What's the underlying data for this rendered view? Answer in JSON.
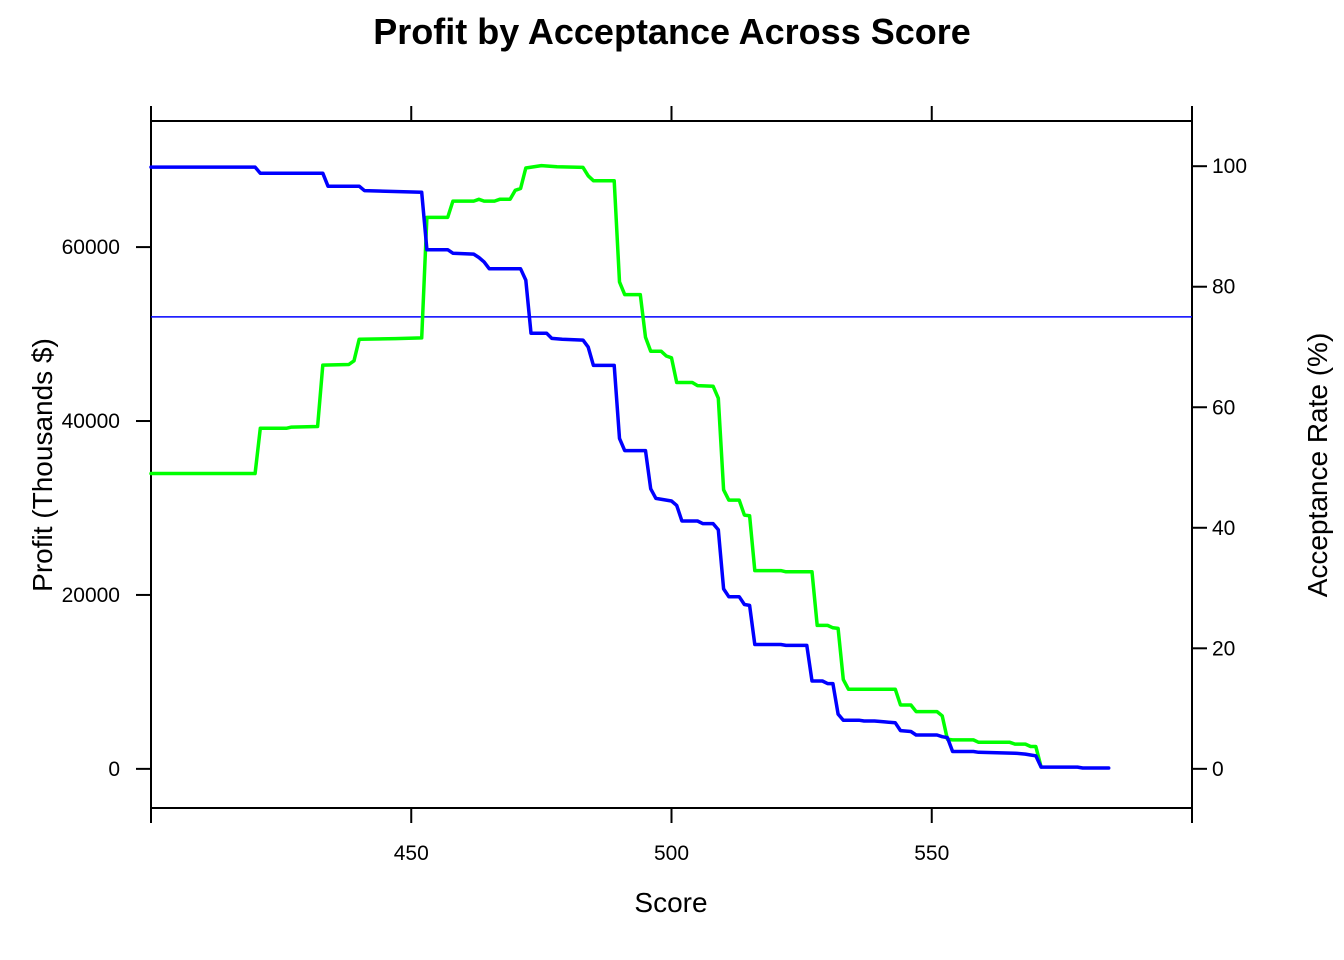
{
  "chart_data": {
    "type": "line",
    "title": "Profit by Acceptance Across Score",
    "xlabel": "Score",
    "ylabel": "Profit (Thousands $)",
    "ylabel_right": "Acceptance Rate (%)",
    "xlim": [
      400,
      600
    ],
    "ylim": [
      -4500,
      74500
    ],
    "ylim_right": [
      -6.5,
      107.5
    ],
    "x_ticks": [
      450,
      500,
      550
    ],
    "y_ticks": [
      0,
      20000,
      40000,
      60000
    ],
    "y_ticks_right": [
      0,
      20,
      40,
      60,
      80,
      100
    ],
    "reference_line": {
      "axis": "right",
      "value": 75,
      "color": "#0000ff"
    },
    "grid": false,
    "series": [
      {
        "axis": "left",
        "color": "#0000ff",
        "points": [
          [
            400,
            69200
          ],
          [
            420,
            69200
          ],
          [
            421,
            68500
          ],
          [
            433,
            68500
          ],
          [
            434,
            67000
          ],
          [
            440,
            67000
          ],
          [
            441,
            66500
          ],
          [
            452,
            66300
          ],
          [
            453,
            59700
          ],
          [
            457,
            59700
          ],
          [
            458,
            59300
          ],
          [
            462,
            59200
          ],
          [
            463,
            58800
          ],
          [
            464,
            58300
          ],
          [
            465,
            57500
          ],
          [
            471,
            57500
          ],
          [
            472,
            56200
          ],
          [
            473,
            50100
          ],
          [
            476,
            50100
          ],
          [
            477,
            49500
          ],
          [
            479,
            49400
          ],
          [
            483,
            49300
          ],
          [
            484,
            48500
          ],
          [
            485,
            46400
          ],
          [
            489,
            46400
          ],
          [
            490,
            38000
          ],
          [
            491,
            36600
          ],
          [
            495,
            36600
          ],
          [
            496,
            32200
          ],
          [
            497,
            31100
          ],
          [
            500,
            30800
          ],
          [
            501,
            30300
          ],
          [
            502,
            28500
          ],
          [
            505,
            28500
          ],
          [
            506,
            28200
          ],
          [
            508,
            28200
          ],
          [
            509,
            27500
          ],
          [
            510,
            20700
          ],
          [
            511,
            19800
          ],
          [
            513,
            19800
          ],
          [
            514,
            18900
          ],
          [
            515,
            18800
          ],
          [
            516,
            14300
          ],
          [
            521,
            14300
          ],
          [
            522,
            14200
          ],
          [
            526,
            14200
          ],
          [
            527,
            10100
          ],
          [
            529,
            10100
          ],
          [
            530,
            9800
          ],
          [
            531,
            9800
          ],
          [
            532,
            6300
          ],
          [
            533,
            5600
          ],
          [
            536,
            5600
          ],
          [
            537,
            5500
          ],
          [
            539,
            5500
          ],
          [
            541,
            5400
          ],
          [
            543,
            5300
          ],
          [
            544,
            4400
          ],
          [
            546,
            4300
          ],
          [
            547,
            3900
          ],
          [
            551,
            3900
          ],
          [
            552,
            3700
          ],
          [
            553,
            3600
          ],
          [
            554,
            2000
          ],
          [
            558,
            2000
          ],
          [
            559,
            1900
          ],
          [
            566,
            1800
          ],
          [
            568,
            1700
          ],
          [
            569,
            1600
          ],
          [
            570,
            1500
          ],
          [
            571,
            200
          ],
          [
            573,
            200
          ],
          [
            578,
            200
          ],
          [
            579,
            100
          ],
          [
            584,
            100
          ]
        ]
      },
      {
        "axis": "right",
        "color": "#00ff00",
        "points": [
          [
            400,
            49
          ],
          [
            420,
            49
          ],
          [
            421,
            56.5
          ],
          [
            426,
            56.5
          ],
          [
            427,
            56.7
          ],
          [
            432,
            56.8
          ],
          [
            433,
            67
          ],
          [
            438,
            67.1
          ],
          [
            439,
            67.7
          ],
          [
            440,
            71.3
          ],
          [
            447,
            71.4
          ],
          [
            452,
            71.5
          ],
          [
            453,
            91.5
          ],
          [
            457,
            91.5
          ],
          [
            458,
            94.2
          ],
          [
            462,
            94.2
          ],
          [
            463,
            94.5
          ],
          [
            464,
            94.2
          ],
          [
            466,
            94.2
          ],
          [
            467,
            94.5
          ],
          [
            469,
            94.5
          ],
          [
            470,
            96
          ],
          [
            471,
            96.3
          ],
          [
            472,
            99.7
          ],
          [
            475,
            100.1
          ],
          [
            478,
            99.9
          ],
          [
            483,
            99.8
          ],
          [
            484,
            98.4
          ],
          [
            485,
            97.6
          ],
          [
            489,
            97.6
          ],
          [
            490,
            80.8
          ],
          [
            491,
            78.7
          ],
          [
            494,
            78.7
          ],
          [
            495,
            71.6
          ],
          [
            496,
            69.3
          ],
          [
            498,
            69.3
          ],
          [
            499,
            68.5
          ],
          [
            500,
            68.2
          ],
          [
            501,
            64.1
          ],
          [
            504,
            64.1
          ],
          [
            505,
            63.6
          ],
          [
            508,
            63.5
          ],
          [
            509,
            61.5
          ],
          [
            510,
            46.3
          ],
          [
            511,
            44.6
          ],
          [
            513,
            44.6
          ],
          [
            514,
            42.1
          ],
          [
            515,
            42.0
          ],
          [
            516,
            32.9
          ],
          [
            521,
            32.9
          ],
          [
            522,
            32.7
          ],
          [
            527,
            32.7
          ],
          [
            528,
            23.8
          ],
          [
            530,
            23.8
          ],
          [
            531,
            23.4
          ],
          [
            532,
            23.3
          ],
          [
            533,
            14.8
          ],
          [
            534,
            13.2
          ],
          [
            543,
            13.2
          ],
          [
            544,
            10.6
          ],
          [
            546,
            10.6
          ],
          [
            547,
            9.5
          ],
          [
            551,
            9.5
          ],
          [
            552,
            8.8
          ],
          [
            553,
            4.9
          ],
          [
            554,
            4.8
          ],
          [
            558,
            4.8
          ],
          [
            559,
            4.4
          ],
          [
            565,
            4.4
          ],
          [
            566,
            4.1
          ],
          [
            568,
            4.1
          ],
          [
            569,
            3.7
          ],
          [
            570,
            3.7
          ],
          [
            571,
            0.3
          ]
        ]
      }
    ]
  }
}
